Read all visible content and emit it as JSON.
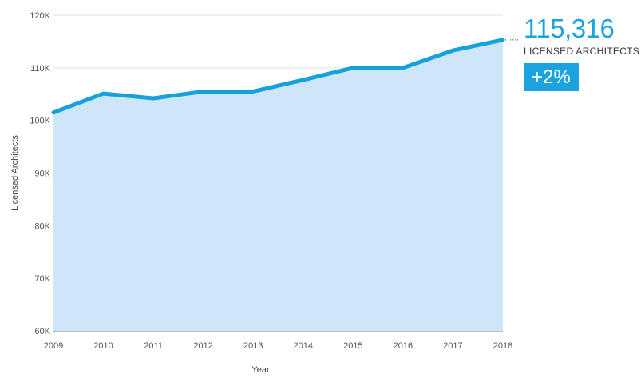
{
  "chart_data": {
    "type": "area",
    "xlabel": "Year",
    "ylabel": "Licensed Architects",
    "x": [
      "2009",
      "2010",
      "2011",
      "2012",
      "2013",
      "2014",
      "2015",
      "2016",
      "2017",
      "2018"
    ],
    "series": [
      {
        "values": [
          101500,
          105100,
          104200,
          105500,
          105500,
          107700,
          110000,
          110000,
          113300,
          115316
        ]
      }
    ],
    "ylim": [
      60000,
      120000
    ],
    "yticks": [
      60000,
      70000,
      80000,
      90000,
      100000,
      110000,
      120000
    ],
    "ytick_labels": [
      "60K",
      "70K",
      "80K",
      "90K",
      "100K",
      "110K",
      "120K"
    ],
    "grid": "horizontal",
    "colors": {
      "line": "#16a0dc",
      "fill": "#cde7f8",
      "grid": "#e2e2e2"
    }
  },
  "callout": {
    "value": "115,316",
    "caption": "LICENSED ARCHITECTS",
    "change": "+2%"
  }
}
